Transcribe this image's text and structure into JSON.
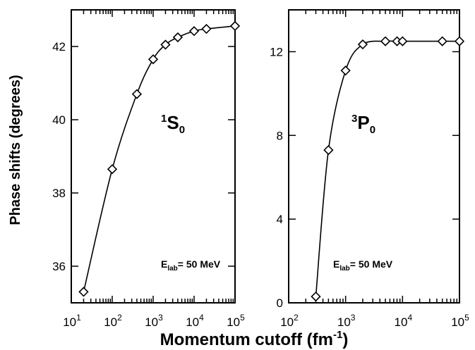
{
  "figure": {
    "ylabel": "Phase shifts (degrees)",
    "xlabel_main": "Momentum cutoff (fm",
    "xlabel_sup": "-1",
    "xlabel_close": ")"
  },
  "chart_data": [
    {
      "type": "line",
      "panel": "left",
      "x_scale": "log",
      "xlim": [
        10,
        100000
      ],
      "ylim": [
        35,
        43
      ],
      "x_ticks": [
        {
          "base": "10",
          "exp": "1"
        },
        {
          "base": "10",
          "exp": "2"
        },
        {
          "base": "10",
          "exp": "3"
        },
        {
          "base": "10",
          "exp": "4"
        },
        {
          "base": "10",
          "exp": "5"
        }
      ],
      "y_ticks": [
        "36",
        "38",
        "40",
        "42"
      ],
      "y_tick_values": [
        36,
        38,
        40,
        42
      ],
      "label_sup": "1",
      "label_main": "S",
      "label_sub": "0",
      "energy_main": "E",
      "energy_sub": "lab",
      "energy_value": "= 50 MeV",
      "series": [
        {
          "marker": "diamond",
          "x": [
            20,
            100,
            400,
            1000,
            2000,
            4000,
            10000,
            20000,
            100000
          ],
          "y": [
            35.3,
            38.65,
            40.7,
            41.65,
            42.05,
            42.25,
            42.42,
            42.48,
            42.56
          ]
        }
      ]
    },
    {
      "type": "line",
      "panel": "right",
      "x_scale": "log",
      "xlim": [
        100,
        100000
      ],
      "ylim": [
        0,
        14
      ],
      "x_ticks": [
        {
          "base": "10",
          "exp": "2"
        },
        {
          "base": "10",
          "exp": "3"
        },
        {
          "base": "10",
          "exp": "4"
        },
        {
          "base": "10",
          "exp": "5"
        }
      ],
      "y_ticks": [
        "0",
        "4",
        "8",
        "12"
      ],
      "y_tick_values": [
        0,
        4,
        8,
        12
      ],
      "label_sup": "3",
      "label_main": "P",
      "label_sub": "0",
      "energy_main": "E",
      "energy_sub": "lab",
      "energy_value": "= 50 MeV",
      "series": [
        {
          "marker": "diamond",
          "x": [
            300,
            500,
            1000,
            2000,
            5000,
            8000,
            10000,
            50000,
            100000
          ],
          "y": [
            0.3,
            7.3,
            11.1,
            12.35,
            12.5,
            12.5,
            12.5,
            12.5,
            12.5
          ]
        }
      ]
    }
  ]
}
